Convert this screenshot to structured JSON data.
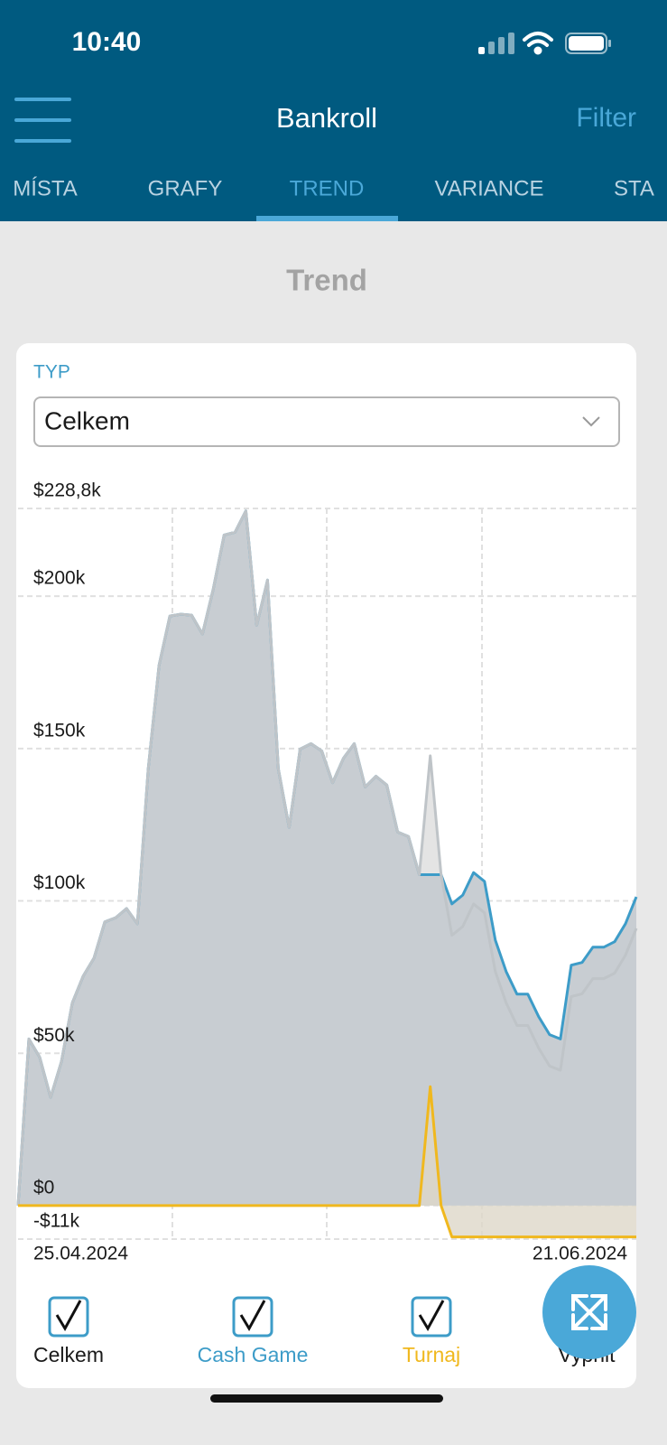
{
  "status_bar": {
    "time": "10:40"
  },
  "header": {
    "title": "Bankroll",
    "filter": "Filter"
  },
  "tabs": [
    "MÍSTA",
    "GRAFY",
    "TREND",
    "VARIANCE",
    "STA"
  ],
  "active_tab": 2,
  "section_title": "Trend",
  "type_label": "TYP",
  "type_value": "Celkem",
  "legend_toggle": "Vypnit",
  "chart_data": {
    "type": "area",
    "categories": [
      "25.04.2024",
      null,
      null,
      null,
      null,
      null,
      null,
      null,
      null,
      null,
      null,
      null,
      null,
      null,
      null,
      null,
      null,
      null,
      null,
      null,
      null,
      null,
      null,
      null,
      null,
      null,
      null,
      null,
      null,
      null,
      null,
      null,
      null,
      null,
      null,
      null,
      null,
      null,
      null,
      null,
      null,
      null,
      null,
      null,
      null,
      null,
      null,
      null,
      null,
      null,
      null,
      null,
      null,
      null,
      null,
      null,
      null,
      "21.06.2024"
    ],
    "series": [
      {
        "name": "Celkem",
        "color": "#bfc4c8",
        "values": [
          0,
          54700,
          48700,
          35500,
          47300,
          66500,
          75300,
          81200,
          93100,
          94500,
          97500,
          92500,
          143300,
          177300,
          193500,
          194100,
          193800,
          187600,
          202400,
          220100,
          221000,
          228000,
          190500,
          205300,
          143300,
          124100,
          149800,
          151600,
          149200,
          138800,
          146800,
          151600,
          137400,
          140900,
          138000,
          122600,
          121100,
          108600,
          147600,
          108600,
          88700,
          91600,
          99000,
          96100,
          76800,
          66500,
          59100,
          59100,
          51700,
          45800,
          44400,
          68600,
          69500,
          74500,
          74500,
          76300,
          82200,
          91000
        ]
      },
      {
        "name": "Cash Game",
        "color": "#3d9cc8",
        "values": [
          0,
          54700,
          48700,
          35500,
          47300,
          66500,
          75300,
          81200,
          93100,
          94500,
          97500,
          92500,
          143300,
          177300,
          193500,
          194100,
          193800,
          187600,
          202400,
          220100,
          221000,
          228000,
          190500,
          205300,
          143300,
          124100,
          149800,
          151600,
          149200,
          138800,
          146800,
          151600,
          137400,
          140900,
          138000,
          122600,
          121100,
          108600,
          108600,
          108600,
          99000,
          101900,
          109300,
          106400,
          87100,
          76800,
          69400,
          69400,
          62000,
          56100,
          54700,
          78900,
          79800,
          84800,
          84800,
          86600,
          92500,
          101300
        ]
      },
      {
        "name": "Turnaj",
        "color": "#f0b81e",
        "values": [
          0,
          0,
          0,
          0,
          0,
          0,
          0,
          0,
          0,
          0,
          0,
          0,
          0,
          0,
          0,
          0,
          0,
          0,
          0,
          0,
          0,
          0,
          0,
          0,
          0,
          0,
          0,
          0,
          0,
          0,
          0,
          0,
          0,
          0,
          0,
          0,
          0,
          0,
          39000,
          0,
          -10300,
          -10300,
          -10300,
          -10300,
          -10300,
          -10300,
          -10300,
          -10300,
          -10300,
          -10300,
          -10300,
          -10300,
          -10300,
          -10300,
          -10300,
          -10300,
          -10300,
          -10300
        ]
      }
    ],
    "ylim": [
      -11000,
      228800
    ],
    "yticks": [
      {
        "value": 228800,
        "label": "$228,8k"
      },
      {
        "value": 200000,
        "label": "$200k"
      },
      {
        "value": 150000,
        "label": "$150k"
      },
      {
        "value": 100000,
        "label": "$100k"
      },
      {
        "value": 50000,
        "label": "$50k"
      },
      {
        "value": 0,
        "label": "$0"
      },
      {
        "value": -11000,
        "label": "-$11k"
      }
    ],
    "grid": true
  }
}
